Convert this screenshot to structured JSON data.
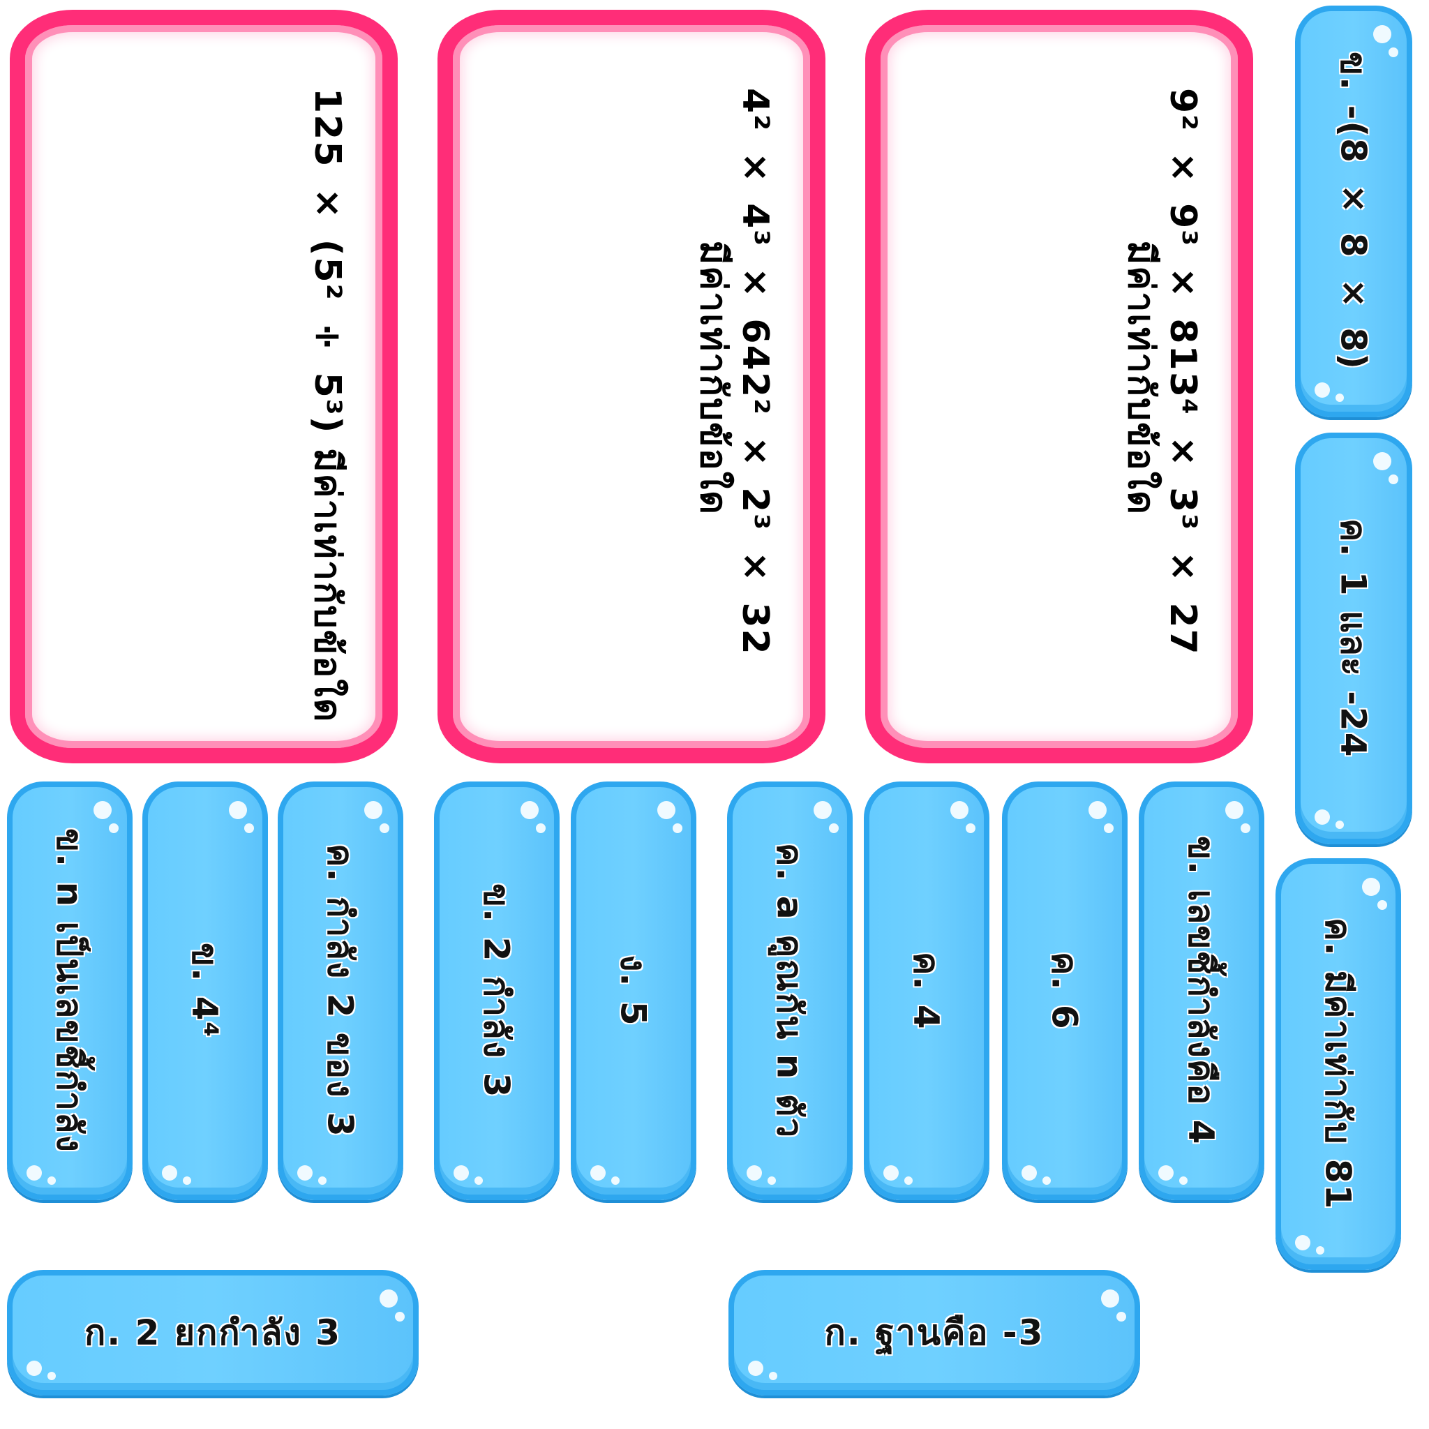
{
  "questions": [
    {
      "expr": "125 × (5² ÷ 5³) มีค่าเท่ากับข้อใด"
    },
    {
      "num": "4² × 4³ × 64",
      "den": "2² × 2³ × 32",
      "tail": "มีค่าเท่ากับข้อใด"
    },
    {
      "num": "9² × 9³ × 81",
      "den": "3⁴ × 3³ × 27",
      "tail": "มีค่าเท่ากับข้อใด"
    }
  ],
  "options": {
    "o1": "ข. -(8 × 8 × 8)",
    "o2": "ค. 1 และ -24",
    "o3": "ค. มีค่าเท่ากับ 81",
    "o4": "ข. n เป็นเลขชี้กำลัง",
    "o5": "ข. 4⁴",
    "o6": "ค. กำลัง 2 ของ 3",
    "o7": "ข. 2 กำลัง 3",
    "o8": "ง. 5",
    "o9": "ค. a คูณกัน n ตัว",
    "o10": "ค. 4",
    "o11": "ค. 6",
    "o12": "ข. เลขชี้กำลังคือ 4",
    "o13": "ก. 2 ยกกำลัง 3",
    "o14": "ก. ฐานคือ -3"
  },
  "colors": {
    "card_border": "#ff2d78",
    "pill_fill": "#66ccff",
    "pill_border": "#2ea7ef"
  }
}
